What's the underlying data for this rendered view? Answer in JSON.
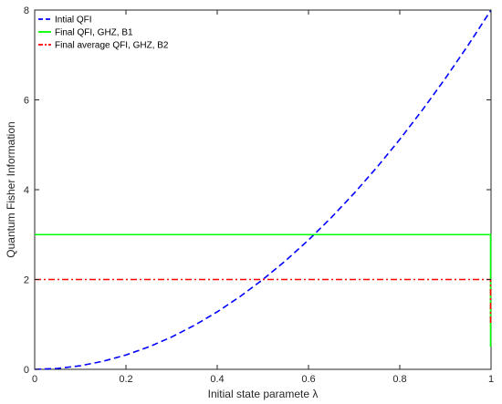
{
  "chart_data": {
    "type": "line",
    "xlabel": "Initial state paramete λ",
    "ylabel": "Quantum Fisher Information",
    "xlim": [
      0,
      1
    ],
    "ylim": [
      0,
      8
    ],
    "x_ticks": [
      0,
      0.2,
      0.4,
      0.6,
      0.8,
      1
    ],
    "x_tick_labels": [
      "0",
      "0.2",
      "0.4",
      "0.6",
      "0.8",
      "1"
    ],
    "y_ticks": [
      0,
      2,
      4,
      6,
      8
    ],
    "y_tick_labels": [
      "0",
      "2",
      "4",
      "6",
      "8"
    ],
    "grid": false,
    "legend_position": "top-left",
    "series": [
      {
        "name": "Intial QFI",
        "color": "#0000ff",
        "style": "dashed",
        "x": [
          0,
          0.05,
          0.1,
          0.15,
          0.2,
          0.25,
          0.3,
          0.35,
          0.4,
          0.45,
          0.5,
          0.55,
          0.6,
          0.65,
          0.7,
          0.75,
          0.8,
          0.85,
          0.9,
          0.95,
          1
        ],
        "y": [
          0,
          0.02,
          0.08,
          0.18,
          0.32,
          0.5,
          0.72,
          0.98,
          1.28,
          1.62,
          2.0,
          2.42,
          2.88,
          3.38,
          3.92,
          4.5,
          5.12,
          5.78,
          6.48,
          7.22,
          8.0
        ]
      },
      {
        "name": "Final QFI, GHZ, B1",
        "color": "#00ff00",
        "style": "solid",
        "x": [
          0,
          0.999,
          0.999
        ],
        "y": [
          3,
          3,
          0.5
        ]
      },
      {
        "name": "Final average QFI, GHZ, B2",
        "color": "#ff0000",
        "style": "dashdot",
        "x": [
          0,
          0.999,
          0.999
        ],
        "y": [
          2,
          2,
          1.0
        ]
      }
    ]
  }
}
